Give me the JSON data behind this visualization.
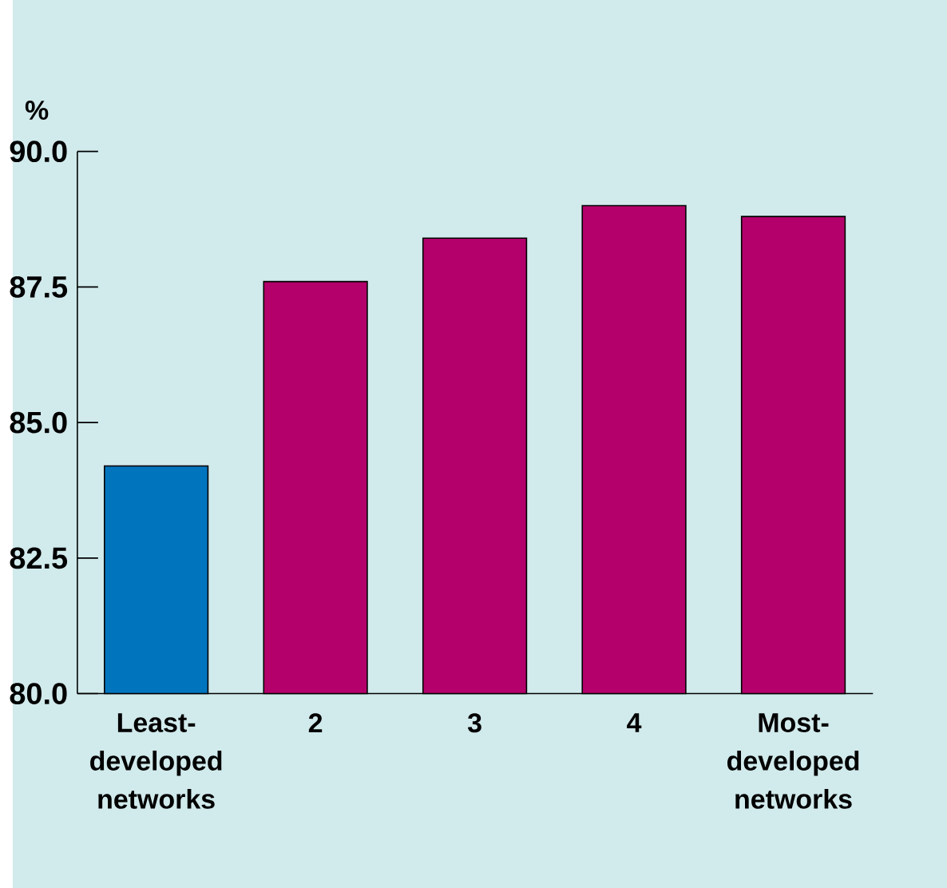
{
  "chart_data": {
    "type": "bar",
    "ylabel": "%",
    "categories": [
      "Least-developed networks",
      "2",
      "3",
      "4",
      "Most-developed networks"
    ],
    "values": [
      84.2,
      87.6,
      88.4,
      89.0,
      88.8
    ],
    "colors": [
      "#0075be",
      "#b3006b",
      "#b3006b",
      "#b3006b",
      "#b3006b"
    ],
    "ylim": [
      80,
      90
    ],
    "yticks": [
      {
        "value": 80,
        "label": "80.0"
      },
      {
        "value": 82.5,
        "label": "82.5"
      },
      {
        "value": 85,
        "label": "85.0"
      },
      {
        "value": 87.5,
        "label": "87.5"
      },
      {
        "value": 90,
        "label": "90.0"
      }
    ],
    "grid": false
  }
}
